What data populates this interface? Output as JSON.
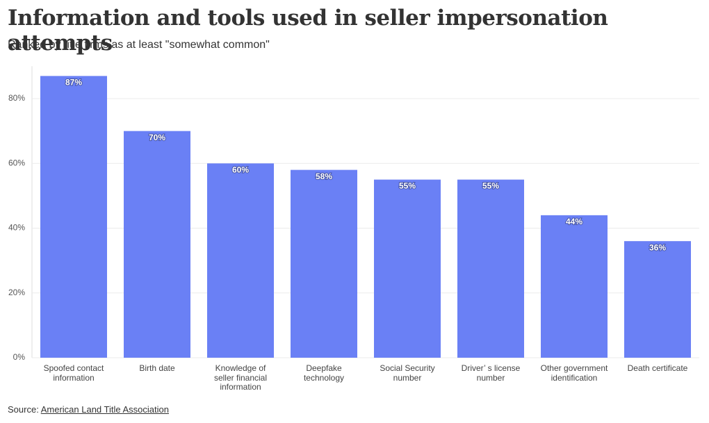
{
  "chart_data": {
    "type": "bar",
    "title": "Information and tools used in seller impersonation attempts",
    "subtitle": "Ranked by title firms as at least \"somewhat common\"",
    "categories": [
      "Spoofed contact information",
      "Birth date",
      "Knowledge of seller financial information",
      "Deepfake technology",
      "Social Security number",
      "Driver’ s license number",
      "Other government identification",
      "Death certificate"
    ],
    "values": [
      87,
      70,
      60,
      58,
      55,
      55,
      44,
      36
    ],
    "value_labels": [
      "87%",
      "70%",
      "60%",
      "58%",
      "55%",
      "55%",
      "44%",
      "36%"
    ],
    "color": "#6a80f5",
    "ylim": [
      0,
      90
    ],
    "yticks": [
      {
        "value": 0,
        "label": "0%"
      },
      {
        "value": 20,
        "label": "20%"
      },
      {
        "value": 40,
        "label": "40%"
      },
      {
        "value": 60,
        "label": "60%"
      },
      {
        "value": 80,
        "label": "80%"
      }
    ],
    "grid": true,
    "source_label": "Source:",
    "source": "American Land Title Association"
  }
}
